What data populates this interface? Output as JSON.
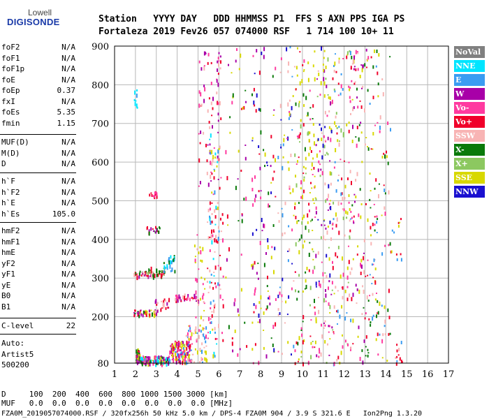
{
  "logo": {
    "top": "Lowell",
    "bottom": "DIGISONDE"
  },
  "header": {
    "line1": "Station   YYYY DAY   DDD HHMMSS P1  FFS S AXN PPS IGA PS",
    "line2": "Fortaleza 2019 Fev26 057 074000 RSF   1 714 100 10+ 11"
  },
  "params_group1": [
    {
      "k": "foF2",
      "v": "N/A"
    },
    {
      "k": "foF1",
      "v": "N/A"
    },
    {
      "k": "foF1p",
      "v": "N/A"
    },
    {
      "k": "foE",
      "v": "N/A"
    },
    {
      "k": "foEp",
      "v": "0.37"
    },
    {
      "k": "fxI",
      "v": "N/A"
    },
    {
      "k": "foEs",
      "v": "5.35"
    },
    {
      "k": "fmin",
      "v": "1.15"
    }
  ],
  "params_group2": [
    {
      "k": "MUF(D)",
      "v": "N/A"
    },
    {
      "k": "M(D)",
      "v": "N/A"
    },
    {
      "k": "D",
      "v": "N/A"
    }
  ],
  "params_group3": [
    {
      "k": "h`F",
      "v": "N/A"
    },
    {
      "k": "h`F2",
      "v": "N/A"
    },
    {
      "k": "h`E",
      "v": "N/A"
    },
    {
      "k": "h`Es",
      "v": "105.0"
    }
  ],
  "params_group4": [
    {
      "k": "hmF2",
      "v": "N/A"
    },
    {
      "k": "hmF1",
      "v": "N/A"
    },
    {
      "k": "hmE",
      "v": "N/A"
    },
    {
      "k": "yF2",
      "v": "N/A"
    },
    {
      "k": "yF1",
      "v": "N/A"
    },
    {
      "k": "yE",
      "v": "N/A"
    },
    {
      "k": "B0",
      "v": "N/A"
    },
    {
      "k": "B1",
      "v": "N/A"
    }
  ],
  "clevel": {
    "k": "C-level",
    "v": "22"
  },
  "auto": [
    "Auto:",
    "Artist5",
    "500200"
  ],
  "legend": [
    {
      "label": "NoVal",
      "bg": "#808080",
      "fg": "#ffffff"
    },
    {
      "label": "NNE",
      "bg": "#00e5ff",
      "fg": "#ffffff"
    },
    {
      "label": "E",
      "bg": "#3a9cf2",
      "fg": "#ffffff"
    },
    {
      "label": "W",
      "bg": "#a800a8",
      "fg": "#ffffff"
    },
    {
      "label": "Vo-",
      "bg": "#ff3aa0",
      "fg": "#ffffff"
    },
    {
      "label": "Vo+",
      "bg": "#f0002a",
      "fg": "#ffffff"
    },
    {
      "label": "SSW",
      "bg": "#f8b4b4",
      "fg": "#ffffff"
    },
    {
      "label": "X-",
      "bg": "#0a7a0a",
      "fg": "#ffffff"
    },
    {
      "label": "X+",
      "bg": "#8cc860",
      "fg": "#ffffff"
    },
    {
      "label": "SSE",
      "bg": "#d8d800",
      "fg": "#ffffff"
    },
    {
      "label": "NNW",
      "bg": "#1a10d0",
      "fg": "#ffffff"
    }
  ],
  "footer": {
    "line1": "D     100  200  400  600  800 1000 1500 3000 [km]",
    "line2": "MUF   0.0  0.0  0.0  0.0  0.0  0.0  0.0  0.0 [MHz]",
    "line3": "FZA0M_2019057074000.RSF / 320fx256h 50 kHz 5.0 km / DPS-4 FZA0M 904 / 3.9 S 321.6 E   Ion2Png 1.3.20"
  },
  "chart_data": {
    "type": "scatter",
    "x_ticks": [
      1,
      2,
      3,
      4,
      5,
      6,
      7,
      8,
      9,
      10,
      11,
      12,
      13,
      14,
      15,
      16,
      17
    ],
    "y_ticks": [
      80,
      200,
      300,
      400,
      500,
      600,
      700,
      800,
      900
    ],
    "xlim": [
      1,
      17
    ],
    "ylim": [
      80,
      900
    ],
    "xlabel": "",
    "ylabel": "",
    "grid": true,
    "dot_colors": [
      "#808080",
      "#00e5ff",
      "#3a9cf2",
      "#a800a8",
      "#ff3aa0",
      "#f0002a",
      "#f8b4b4",
      "#0a7a0a",
      "#8cc860",
      "#d8d800",
      "#1a10d0"
    ],
    "clusters": [
      {
        "x": [
          1.9,
          2.1
        ],
        "y": [
          730,
          800
        ],
        "n": 8,
        "colors": [
          2,
          1
        ]
      },
      {
        "x": [
          2.0,
          2.2
        ],
        "y": [
          80,
          120
        ],
        "n": 40,
        "colors": [
          9,
          7,
          3,
          5
        ]
      },
      {
        "x": [
          2.2,
          3.6
        ],
        "y": [
          80,
          100
        ],
        "n": 120,
        "colors": [
          9,
          7,
          1,
          3,
          4
        ]
      },
      {
        "x": [
          1.9,
          3.0
        ],
        "y": [
          205,
          220
        ],
        "n": 40,
        "colors": [
          5,
          3,
          9,
          7
        ]
      },
      {
        "x": [
          2.9,
          3.6
        ],
        "y": [
          215,
          250
        ],
        "n": 25,
        "colors": [
          3,
          5,
          6
        ]
      },
      {
        "x": [
          1.9,
          3.3
        ],
        "y": [
          305,
          320
        ],
        "n": 45,
        "colors": [
          5,
          3,
          7,
          6
        ]
      },
      {
        "x": [
          2.5,
          3.4
        ],
        "y": [
          315,
          330
        ],
        "n": 20,
        "colors": [
          7,
          8,
          5
        ]
      },
      {
        "x": [
          2.5,
          3.2
        ],
        "y": [
          420,
          435
        ],
        "n": 20,
        "colors": [
          5,
          3,
          7
        ]
      },
      {
        "x": [
          2.6,
          3.0
        ],
        "y": [
          510,
          525
        ],
        "n": 14,
        "colors": [
          5,
          4
        ]
      },
      {
        "x": [
          3.6,
          4.6
        ],
        "y": [
          85,
          140
        ],
        "n": 140,
        "colors": [
          3,
          4,
          2,
          5,
          9
        ]
      },
      {
        "x": [
          3.8,
          5.0
        ],
        "y": [
          240,
          260
        ],
        "n": 40,
        "colors": [
          3,
          4,
          5,
          6
        ]
      },
      {
        "x": [
          3.3,
          4.0
        ],
        "y": [
          320,
          360
        ],
        "n": 25,
        "colors": [
          2,
          1,
          7
        ]
      },
      {
        "x": [
          4.4,
          5.4
        ],
        "y": [
          80,
          180
        ],
        "n": 60,
        "colors": [
          9,
          4,
          2,
          6
        ]
      },
      {
        "x": [
          4.8,
          5.3
        ],
        "y": [
          180,
          420
        ],
        "n": 30,
        "colors": [
          6,
          4,
          9
        ]
      },
      {
        "x": [
          5.0,
          6.1
        ],
        "y": [
          500,
          900
        ],
        "n": 80,
        "colors": [
          6,
          5,
          3,
          4
        ]
      },
      {
        "x": [
          5.4,
          6.2
        ],
        "y": [
          140,
          500
        ],
        "n": 70,
        "colors": [
          6,
          5,
          4
        ]
      },
      {
        "x": [
          5.5,
          6.0
        ],
        "y": [
          80,
          700
        ],
        "n": 40,
        "colors": [
          2,
          1,
          9
        ]
      },
      {
        "x": [
          6.3,
          7.3
        ],
        "y": [
          80,
          900
        ],
        "n": 50,
        "colors": [
          9,
          7,
          3,
          4,
          5
        ]
      },
      {
        "x": [
          7.5,
          8.7
        ],
        "y": [
          80,
          900
        ],
        "n": 110,
        "colors": [
          10,
          4,
          5,
          9,
          7,
          3
        ]
      },
      {
        "x": [
          8.8,
          9.6
        ],
        "y": [
          80,
          900
        ],
        "n": 70,
        "colors": [
          2,
          10,
          4,
          9,
          6
        ]
      },
      {
        "x": [
          9.6,
          10.6
        ],
        "y": [
          80,
          900
        ],
        "n": 160,
        "colors": [
          9,
          9,
          8,
          7,
          4,
          5
        ]
      },
      {
        "x": [
          10.6,
          11.4
        ],
        "y": [
          80,
          900
        ],
        "n": 140,
        "colors": [
          9,
          8,
          4,
          6,
          10,
          3
        ]
      },
      {
        "x": [
          11.4,
          12.3
        ],
        "y": [
          80,
          900
        ],
        "n": 140,
        "colors": [
          6,
          4,
          9,
          8,
          5,
          2
        ]
      },
      {
        "x": [
          12.3,
          13.2
        ],
        "y": [
          80,
          900
        ],
        "n": 120,
        "colors": [
          6,
          5,
          9,
          4,
          3,
          7
        ]
      },
      {
        "x": [
          13.2,
          14.2
        ],
        "y": [
          80,
          900
        ],
        "n": 100,
        "colors": [
          9,
          4,
          2,
          5,
          6,
          7
        ]
      },
      {
        "x": [
          14.2,
          14.8
        ],
        "y": [
          350,
          460
        ],
        "n": 12,
        "colors": [
          2,
          5,
          9
        ]
      },
      {
        "x": [
          14.3,
          14.8
        ],
        "y": [
          80,
          140
        ],
        "n": 12,
        "colors": [
          5,
          2,
          6
        ]
      }
    ]
  }
}
